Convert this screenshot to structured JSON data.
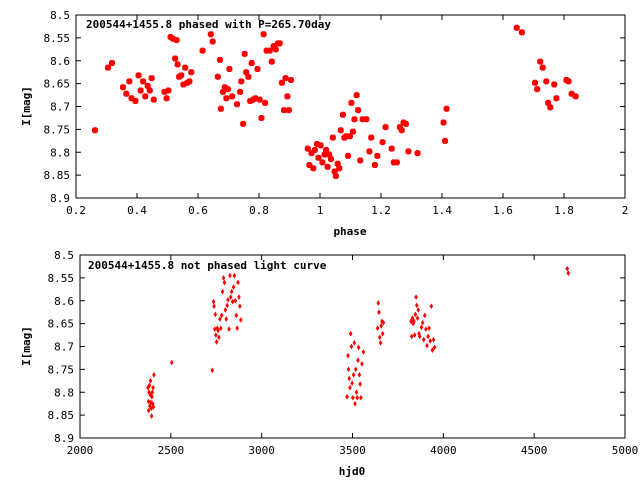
{
  "chart_data": [
    {
      "type": "scatter",
      "title": "200544+1455.8 phased with P=265.70day",
      "xlabel": "phase",
      "ylabel": "I[mag]",
      "xlim": [
        0.2,
        2
      ],
      "ylim": [
        8.9,
        8.5
      ],
      "y_reversed": true,
      "grid": false,
      "xticks": [
        0.2,
        0.4,
        0.6,
        0.8,
        1,
        1.2,
        1.4,
        1.6,
        1.8,
        2
      ],
      "yticks": [
        8.5,
        8.55,
        8.6,
        8.65,
        8.7,
        8.75,
        8.8,
        8.85,
        8.9
      ],
      "marker_color": "#ff0000",
      "points": [
        [
          0.262,
          8.752
        ],
        [
          0.305,
          8.615
        ],
        [
          0.318,
          8.605
        ],
        [
          0.354,
          8.658
        ],
        [
          0.365,
          8.672
        ],
        [
          0.375,
          8.645
        ],
        [
          0.382,
          8.682
        ],
        [
          0.395,
          8.688
        ],
        [
          0.405,
          8.632
        ],
        [
          0.412,
          8.665
        ],
        [
          0.42,
          8.645
        ],
        [
          0.427,
          8.678
        ],
        [
          0.435,
          8.655
        ],
        [
          0.442,
          8.665
        ],
        [
          0.448,
          8.638
        ],
        [
          0.455,
          8.685
        ],
        [
          0.49,
          8.668
        ],
        [
          0.497,
          8.682
        ],
        [
          0.503,
          8.665
        ],
        [
          0.51,
          8.548
        ],
        [
          0.518,
          8.552
        ],
        [
          0.525,
          8.595
        ],
        [
          0.53,
          8.555
        ],
        [
          0.533,
          8.608
        ],
        [
          0.538,
          8.635
        ],
        [
          0.545,
          8.632
        ],
        [
          0.552,
          8.652
        ],
        [
          0.558,
          8.615
        ],
        [
          0.565,
          8.648
        ],
        [
          0.572,
          8.645
        ],
        [
          0.578,
          8.625
        ],
        [
          0.615,
          8.578
        ],
        [
          0.642,
          8.542
        ],
        [
          0.648,
          8.558
        ],
        [
          0.665,
          8.635
        ],
        [
          0.672,
          8.598
        ],
        [
          0.675,
          8.705
        ],
        [
          0.682,
          8.668
        ],
        [
          0.688,
          8.658
        ],
        [
          0.693,
          8.682
        ],
        [
          0.698,
          8.662
        ],
        [
          0.703,
          8.618
        ],
        [
          0.712,
          8.678
        ],
        [
          0.728,
          8.695
        ],
        [
          0.738,
          8.668
        ],
        [
          0.742,
          8.645
        ],
        [
          0.748,
          8.738
        ],
        [
          0.753,
          8.585
        ],
        [
          0.758,
          8.625
        ],
        [
          0.765,
          8.635
        ],
        [
          0.771,
          8.688
        ],
        [
          0.776,
          8.605
        ],
        [
          0.781,
          8.685
        ],
        [
          0.788,
          8.682
        ],
        [
          0.795,
          8.618
        ],
        [
          0.802,
          8.685
        ],
        [
          0.808,
          8.725
        ],
        [
          0.815,
          8.542
        ],
        [
          0.82,
          8.692
        ],
        [
          0.825,
          8.578
        ],
        [
          0.835,
          8.578
        ],
        [
          0.842,
          8.602
        ],
        [
          0.848,
          8.568
        ],
        [
          0.855,
          8.575
        ],
        [
          0.862,
          8.562
        ],
        [
          0.868,
          8.562
        ],
        [
          0.875,
          8.648
        ],
        [
          0.882,
          8.708
        ],
        [
          0.887,
          8.638
        ],
        [
          0.893,
          8.678
        ],
        [
          0.898,
          8.708
        ],
        [
          0.905,
          8.642
        ],
        [
          0.96,
          8.792
        ],
        [
          0.965,
          8.828
        ],
        [
          0.972,
          8.802
        ],
        [
          0.978,
          8.835
        ],
        [
          0.983,
          8.795
        ],
        [
          0.99,
          8.782
        ],
        [
          0.995,
          8.812
        ],
        [
          1.002,
          8.785
        ],
        [
          1.008,
          8.822
        ],
        [
          1.015,
          8.805
        ],
        [
          1.02,
          8.795
        ],
        [
          1.025,
          8.832
        ],
        [
          1.03,
          8.805
        ],
        [
          1.036,
          8.815
        ],
        [
          1.042,
          8.768
        ],
        [
          1.048,
          8.842
        ],
        [
          1.052,
          8.852
        ],
        [
          1.058,
          8.825
        ],
        [
          1.063,
          8.835
        ],
        [
          1.068,
          8.752
        ],
        [
          1.075,
          8.718
        ],
        [
          1.08,
          8.768
        ],
        [
          1.086,
          8.765
        ],
        [
          1.092,
          8.808
        ],
        [
          1.098,
          8.765
        ],
        [
          1.103,
          8.692
        ],
        [
          1.108,
          8.755
        ],
        [
          1.113,
          8.728
        ],
        [
          1.12,
          8.675
        ],
        [
          1.125,
          8.708
        ],
        [
          1.132,
          8.818
        ],
        [
          1.14,
          8.728
        ],
        [
          1.152,
          8.728
        ],
        [
          1.162,
          8.798
        ],
        [
          1.168,
          8.768
        ],
        [
          1.18,
          8.828
        ],
        [
          1.188,
          8.808
        ],
        [
          1.205,
          8.778
        ],
        [
          1.215,
          8.745
        ],
        [
          1.235,
          8.792
        ],
        [
          1.242,
          8.822
        ],
        [
          1.252,
          8.822
        ],
        [
          1.262,
          8.745
        ],
        [
          1.268,
          8.752
        ],
        [
          1.274,
          8.735
        ],
        [
          1.282,
          8.738
        ],
        [
          1.29,
          8.798
        ],
        [
          1.32,
          8.802
        ],
        [
          1.405,
          8.735
        ],
        [
          1.41,
          8.775
        ],
        [
          1.415,
          8.705
        ],
        [
          1.645,
          8.528
        ],
        [
          1.662,
          8.538
        ],
        [
          1.705,
          8.648
        ],
        [
          1.712,
          8.662
        ],
        [
          1.722,
          8.602
        ],
        [
          1.73,
          8.615
        ],
        [
          1.742,
          8.645
        ],
        [
          1.748,
          8.692
        ],
        [
          1.755,
          8.702
        ],
        [
          1.768,
          8.652
        ],
        [
          1.775,
          8.682
        ],
        [
          1.808,
          8.642
        ],
        [
          1.815,
          8.645
        ],
        [
          1.825,
          8.672
        ],
        [
          1.838,
          8.678
        ]
      ]
    },
    {
      "type": "scatter",
      "title": "200544+1455.8 not phased light curve",
      "xlabel": "hjd0",
      "ylabel": "I[mag]",
      "xlim": [
        2000,
        5000
      ],
      "ylim": [
        8.9,
        8.5
      ],
      "y_reversed": true,
      "grid": false,
      "xticks": [
        2000,
        2500,
        3000,
        3500,
        4000,
        4500,
        5000
      ],
      "yticks": [
        8.5,
        8.55,
        8.6,
        8.65,
        8.7,
        8.75,
        8.8,
        8.85,
        8.9
      ],
      "marker_color": "#ff0000",
      "points": [
        [
          2375,
          8.79
        ],
        [
          2377,
          8.82
        ],
        [
          2378,
          8.84
        ],
        [
          2380,
          8.8
        ],
        [
          2382,
          8.785
        ],
        [
          2384,
          8.83
        ],
        [
          2386,
          8.805
        ],
        [
          2388,
          8.775
        ],
        [
          2390,
          8.822
        ],
        [
          2392,
          8.835
        ],
        [
          2394,
          8.852
        ],
        [
          2396,
          8.81
        ],
        [
          2398,
          8.8
        ],
        [
          2400,
          8.825
        ],
        [
          2402,
          8.79
        ],
        [
          2404,
          8.832
        ],
        [
          2407,
          8.762
        ],
        [
          2505,
          8.735
        ],
        [
          2728,
          8.752
        ],
        [
          2735,
          8.602
        ],
        [
          2738,
          8.612
        ],
        [
          2742,
          8.662
        ],
        [
          2745,
          8.63
        ],
        [
          2748,
          8.675
        ],
        [
          2752,
          8.69
        ],
        [
          2755,
          8.66
        ],
        [
          2760,
          8.665
        ],
        [
          2765,
          8.68
        ],
        [
          2770,
          8.64
        ],
        [
          2775,
          8.66
        ],
        [
          2780,
          8.632
        ],
        [
          2785,
          8.58
        ],
        [
          2790,
          8.55
        ],
        [
          2795,
          8.56
        ],
        [
          2800,
          8.62
        ],
        [
          2805,
          8.64
        ],
        [
          2810,
          8.61
        ],
        [
          2815,
          8.598
        ],
        [
          2820,
          8.662
        ],
        [
          2825,
          8.545
        ],
        [
          2830,
          8.592
        ],
        [
          2835,
          8.58
        ],
        [
          2840,
          8.602
        ],
        [
          2845,
          8.57
        ],
        [
          2850,
          8.545
        ],
        [
          2855,
          8.6
        ],
        [
          2860,
          8.632
        ],
        [
          2865,
          8.66
        ],
        [
          2870,
          8.56
        ],
        [
          2875,
          8.592
        ],
        [
          2880,
          8.612
        ],
        [
          2885,
          8.642
        ],
        [
          3470,
          8.81
        ],
        [
          3475,
          8.72
        ],
        [
          3478,
          8.75
        ],
        [
          3482,
          8.77
        ],
        [
          3486,
          8.79
        ],
        [
          3490,
          8.672
        ],
        [
          3494,
          8.7
        ],
        [
          3498,
          8.78
        ],
        [
          3502,
          8.812
        ],
        [
          3506,
          8.762
        ],
        [
          3510,
          8.692
        ],
        [
          3514,
          8.825
        ],
        [
          3518,
          8.75
        ],
        [
          3522,
          8.8
        ],
        [
          3526,
          8.812
        ],
        [
          3530,
          8.73
        ],
        [
          3534,
          8.702
        ],
        [
          3538,
          8.762
        ],
        [
          3542,
          8.782
        ],
        [
          3546,
          8.812
        ],
        [
          3552,
          8.738
        ],
        [
          3560,
          8.712
        ],
        [
          3638,
          8.66
        ],
        [
          3642,
          8.605
        ],
        [
          3646,
          8.625
        ],
        [
          3650,
          8.68
        ],
        [
          3654,
          8.692
        ],
        [
          3658,
          8.655
        ],
        [
          3662,
          8.645
        ],
        [
          3666,
          8.672
        ],
        [
          3670,
          8.648
        ],
        [
          3822,
          8.645
        ],
        [
          3826,
          8.678
        ],
        [
          3830,
          8.638
        ],
        [
          3834,
          8.65
        ],
        [
          3838,
          8.645
        ],
        [
          3842,
          8.675
        ],
        [
          3846,
          8.63
        ],
        [
          3850,
          8.592
        ],
        [
          3854,
          8.61
        ],
        [
          3858,
          8.638
        ],
        [
          3862,
          8.62
        ],
        [
          3866,
          8.672
        ],
        [
          3870,
          8.678
        ],
        [
          3880,
          8.658
        ],
        [
          3886,
          8.648
        ],
        [
          3892,
          8.685
        ],
        [
          3898,
          8.632
        ],
        [
          3904,
          8.662
        ],
        [
          3910,
          8.698
        ],
        [
          3916,
          8.678
        ],
        [
          3922,
          8.66
        ],
        [
          3928,
          8.688
        ],
        [
          3934,
          8.612
        ],
        [
          3940,
          8.708
        ],
        [
          3946,
          8.685
        ],
        [
          3952,
          8.702
        ],
        [
          4682,
          8.53
        ],
        [
          4688,
          8.54
        ]
      ]
    }
  ]
}
